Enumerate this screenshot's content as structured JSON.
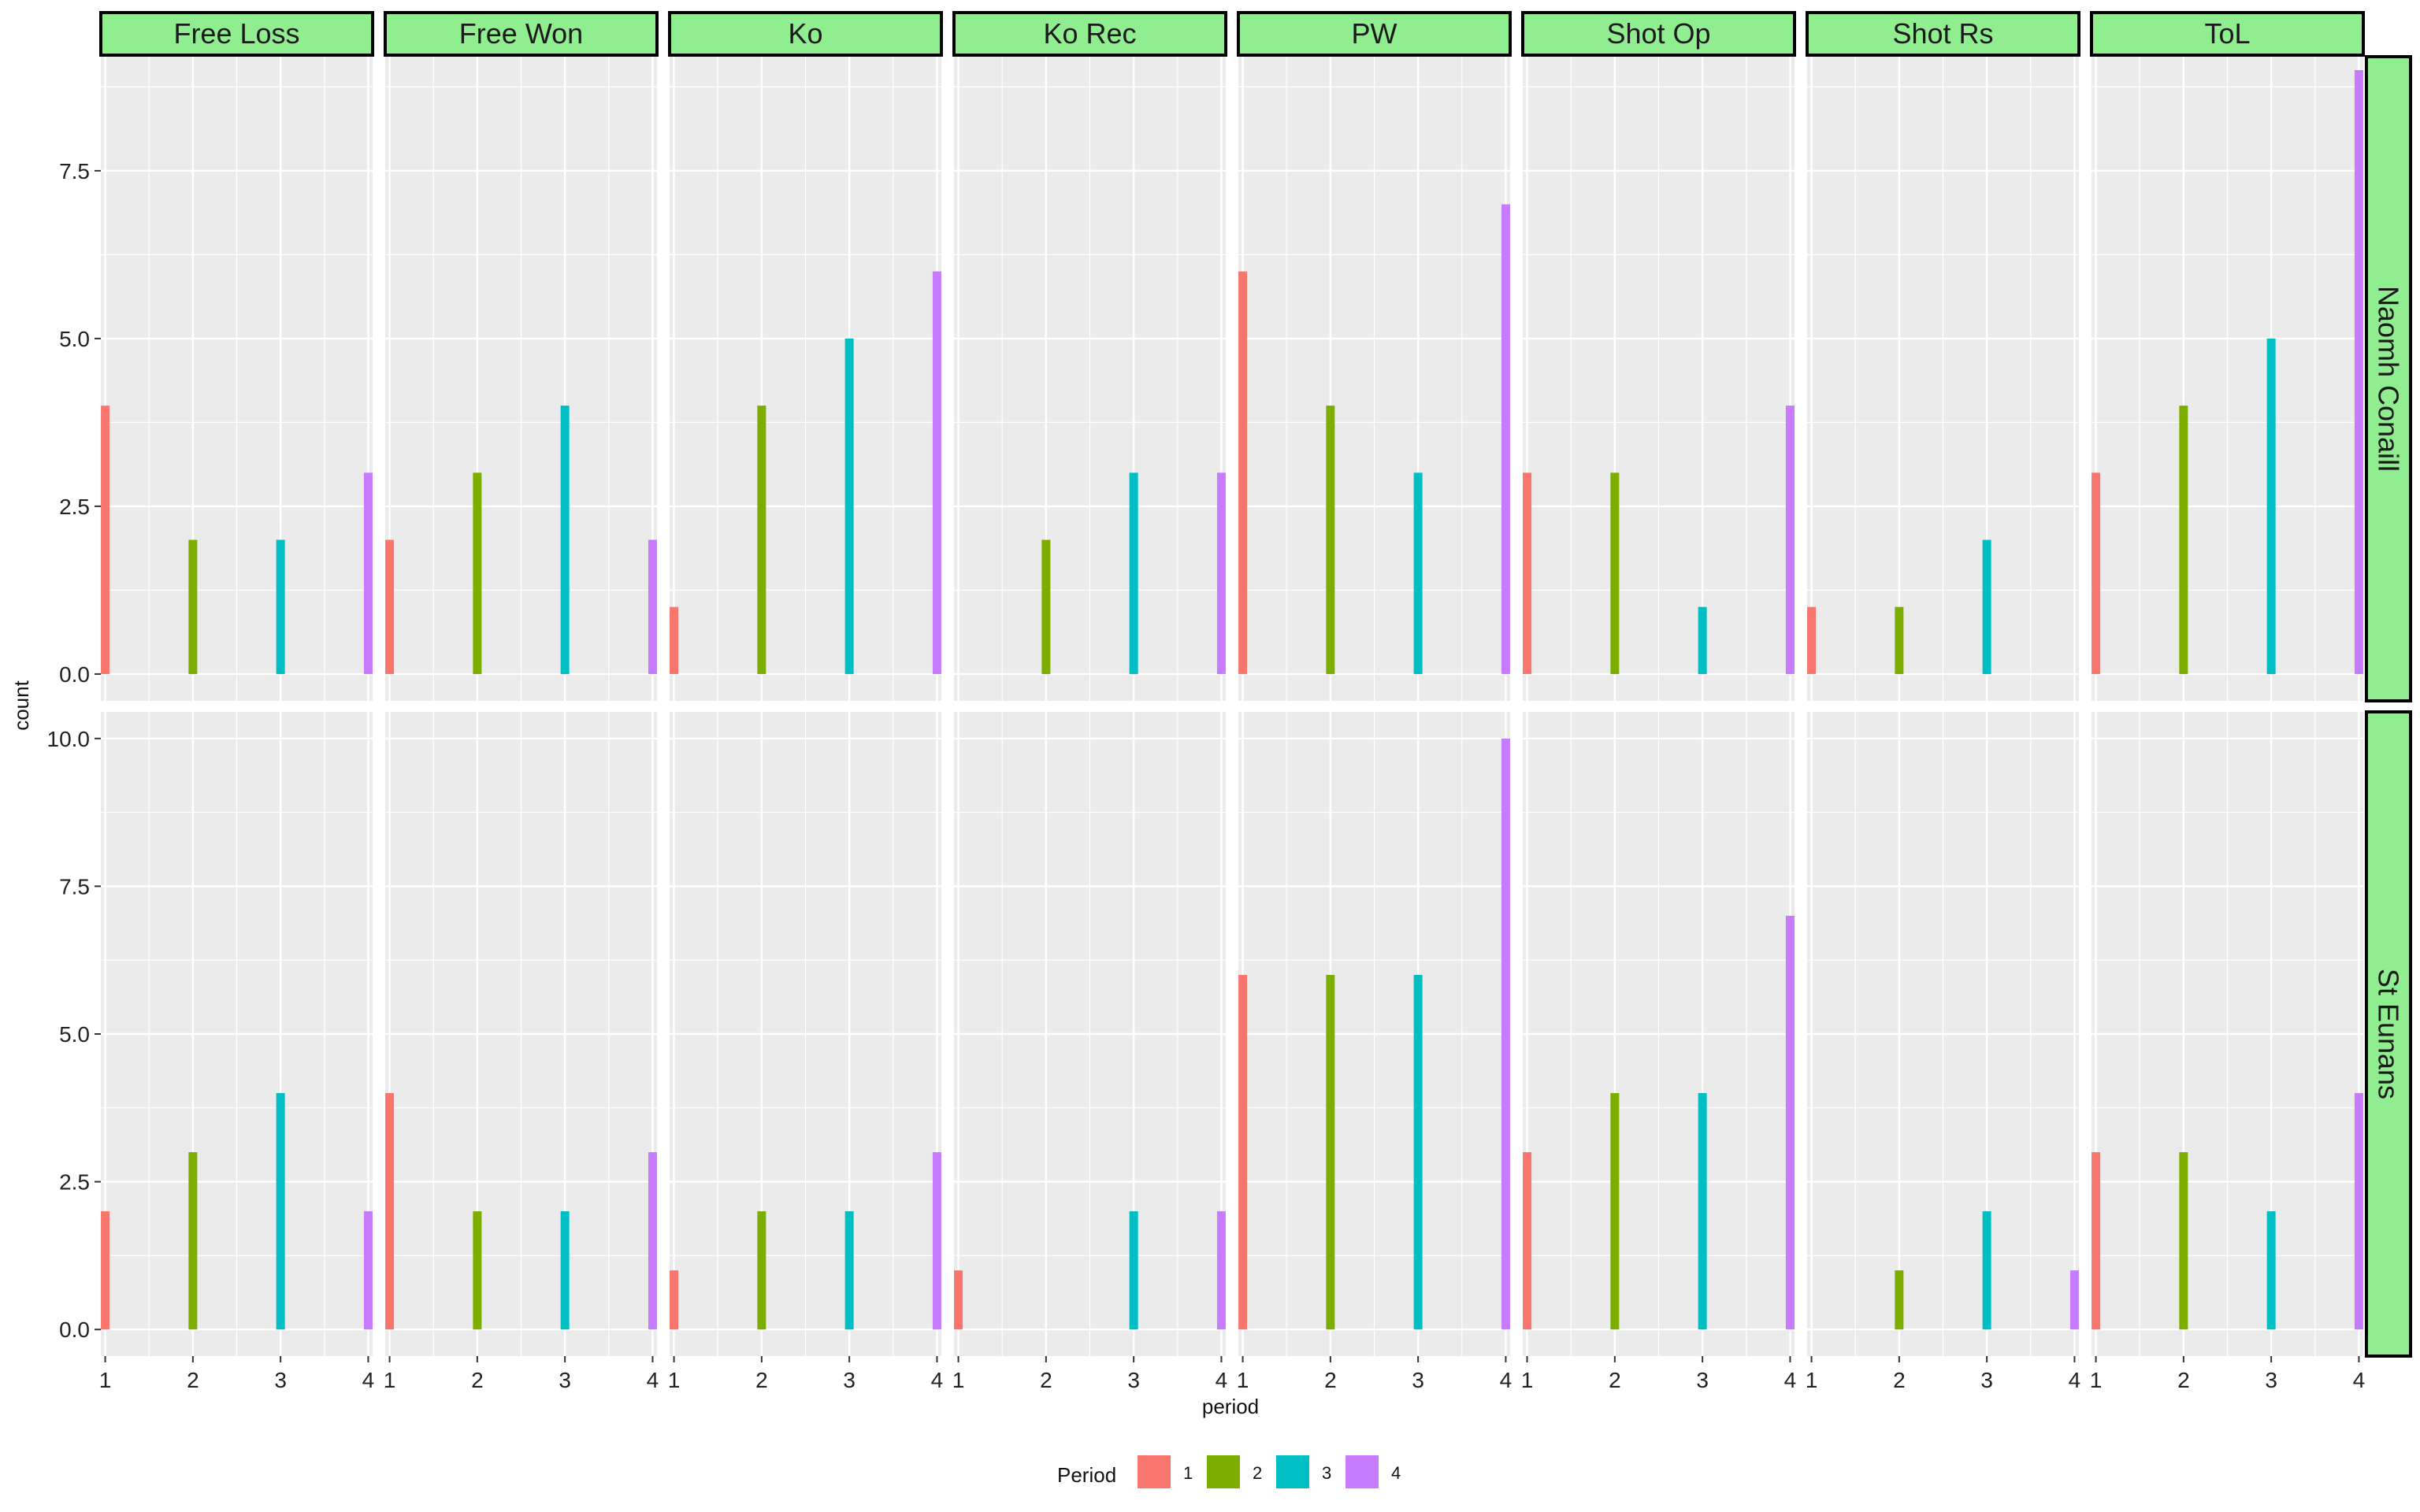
{
  "chart_data": {
    "type": "bar",
    "facet_cols": [
      "Free Loss",
      "Free Won",
      "Ko",
      "Ko Rec",
      "PW",
      "Shot Op",
      "Shot Rs",
      "ToL"
    ],
    "facet_rows": [
      {
        "name": "Naomh Conaill",
        "ylim": [
          -0.4,
          9.2
        ],
        "yticks": [
          0.0,
          2.5,
          5.0,
          7.5
        ],
        "ytick_labels": [
          "0.0",
          "2.5",
          "5.0",
          "7.5"
        ]
      },
      {
        "name": "St Eunans",
        "ylim": [
          -0.45,
          10.45
        ],
        "yticks": [
          0.0,
          2.5,
          5.0,
          7.5,
          10.0
        ],
        "ytick_labels": [
          "0.0",
          "2.5",
          "5.0",
          "7.5",
          "10.0"
        ]
      }
    ],
    "x": [
      1,
      2,
      3,
      4
    ],
    "xtick_labels": [
      "1",
      "2",
      "3",
      "4"
    ],
    "values": [
      [
        [
          4,
          2,
          2,
          3
        ],
        [
          2,
          3,
          4,
          2
        ],
        [
          1,
          4,
          5,
          6
        ],
        [
          0,
          2,
          3,
          3
        ],
        [
          6,
          4,
          3,
          7
        ],
        [
          3,
          3,
          1,
          4
        ],
        [
          1,
          1,
          2,
          0
        ],
        [
          3,
          4,
          5,
          9
        ]
      ],
      [
        [
          2,
          3,
          4,
          2
        ],
        [
          4,
          2,
          2,
          3
        ],
        [
          1,
          2,
          2,
          3
        ],
        [
          1,
          0,
          2,
          2
        ],
        [
          6,
          6,
          6,
          10
        ],
        [
          3,
          4,
          4,
          7
        ],
        [
          0,
          1,
          2,
          1
        ],
        [
          3,
          3,
          2,
          4
        ]
      ]
    ],
    "xlabel": "period",
    "ylabel": "count",
    "legend": {
      "title": "Period",
      "position": "bottom",
      "entries": [
        {
          "label": "1",
          "color": "#F8766D"
        },
        {
          "label": "2",
          "color": "#7CAE00"
        },
        {
          "label": "3",
          "color": "#00BFC4"
        },
        {
          "label": "4",
          "color": "#C77CFF"
        }
      ]
    },
    "colors": {
      "panel_background": "#EBEBEB",
      "gridline": "#FFFFFF",
      "strip_fill": "#90EE90",
      "strip_border": "#000000"
    },
    "grid": true
  }
}
